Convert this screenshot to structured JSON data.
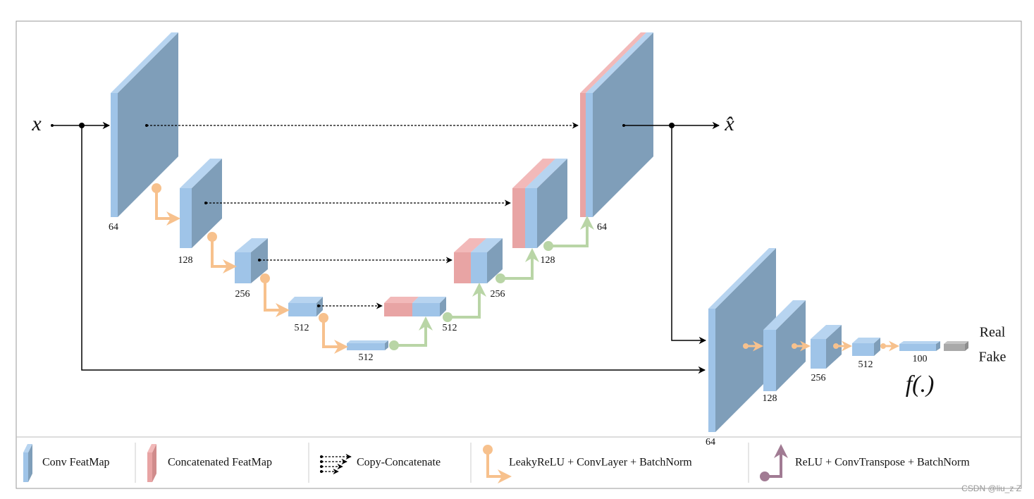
{
  "input": {
    "x": "x",
    "x_hat": "x̂"
  },
  "encoder": {
    "labels": [
      "64",
      "128",
      "256",
      "512",
      "512"
    ]
  },
  "decoder": {
    "labels": [
      "512",
      "256",
      "128",
      "64"
    ]
  },
  "discriminator": {
    "labels": [
      "64",
      "128",
      "256",
      "512",
      "100"
    ],
    "function": "f(.)",
    "outputs": [
      "Real",
      "Fake"
    ]
  },
  "legend": [
    "Conv FeatMap",
    "Concatenated FeatMap",
    "Copy-Concatenate",
    "LeakyReLU + ConvLayer + BatchNorm",
    "ReLU + ConvTranspose + BatchNorm"
  ],
  "watermark": "CSDN @liu_z Z"
}
